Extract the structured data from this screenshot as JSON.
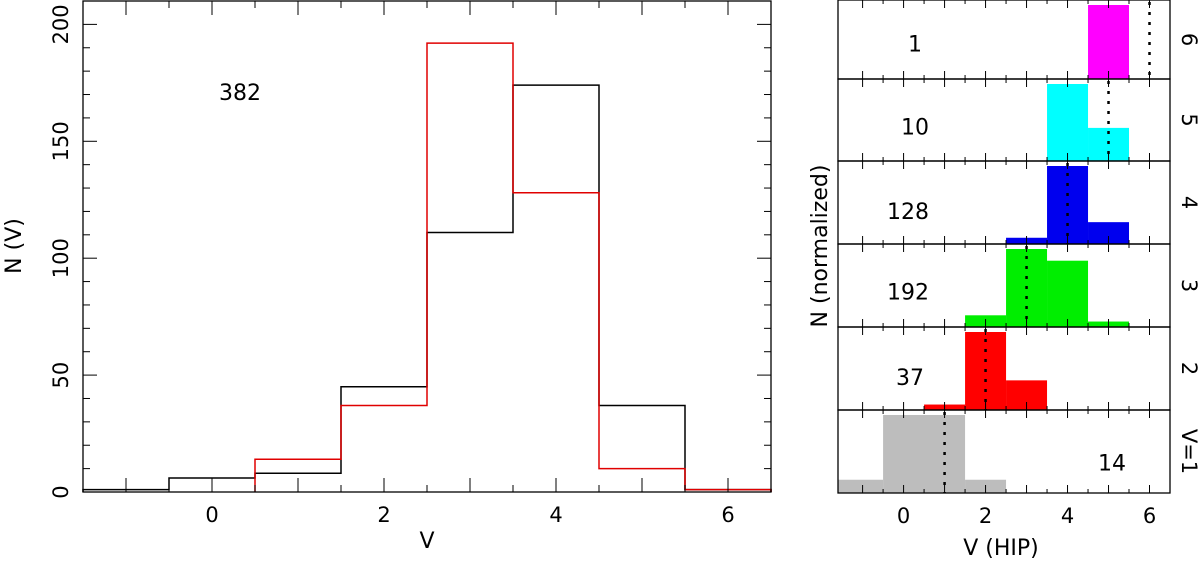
{
  "chart_data": [
    {
      "type": "histogram",
      "xlabel": "V",
      "ylabel": "N (V)",
      "xlim": [
        -1.5,
        6.5
      ],
      "ylim": [
        0,
        210
      ],
      "xticks": [
        0,
        2,
        4,
        6
      ],
      "yticks": [
        0,
        50,
        100,
        150,
        200
      ],
      "annotation": "382",
      "series": [
        {
          "color": "#000000",
          "bins": [
            [
              -1.5,
              -0.5,
              1
            ],
            [
              -0.5,
              0.5,
              6
            ],
            [
              0.5,
              1.5,
              8
            ],
            [
              1.5,
              2.5,
              45
            ],
            [
              2.5,
              3.5,
              111
            ],
            [
              3.5,
              4.5,
              174
            ],
            [
              4.5,
              5.5,
              37
            ],
            [
              5.5,
              6.5,
              1
            ]
          ]
        },
        {
          "color": "#e00000",
          "bins": [
            [
              0.5,
              1.5,
              14
            ],
            [
              1.5,
              2.5,
              37
            ],
            [
              2.5,
              3.5,
              192
            ],
            [
              3.5,
              4.5,
              128
            ],
            [
              4.5,
              5.5,
              10
            ],
            [
              5.5,
              6.5,
              1
            ]
          ]
        }
      ]
    },
    {
      "type": "stacked-histograms",
      "xlabel": "V (HIP)",
      "ylabel": "N (normalized)",
      "xlim": [
        -1.6,
        6.5
      ],
      "xticks": [
        0,
        2,
        4,
        6
      ],
      "panels": [
        {
          "label": "6",
          "count": "1",
          "color": "#ff00ff",
          "marker_v": 6,
          "bins": [
            [
              4.5,
              5.5,
              1.0
            ]
          ]
        },
        {
          "label": "5",
          "count": "10",
          "color": "#00ffff",
          "marker_v": 5,
          "bins": [
            [
              3.5,
              4.5,
              1.0
            ],
            [
              4.5,
              5.5,
              0.43
            ]
          ]
        },
        {
          "label": "4",
          "count": "128",
          "color": "#0000ee",
          "marker_v": 4,
          "bins": [
            [
              2.5,
              3.5,
              0.08
            ],
            [
              3.5,
              4.5,
              1.0
            ],
            [
              4.5,
              5.5,
              0.28
            ]
          ]
        },
        {
          "label": "3",
          "count": "192",
          "color": "#00ee00",
          "marker_v": 3,
          "bins": [
            [
              1.5,
              2.5,
              0.15
            ],
            [
              2.5,
              3.5,
              1.0
            ],
            [
              3.5,
              4.5,
              0.85
            ],
            [
              4.5,
              5.5,
              0.07
            ]
          ]
        },
        {
          "label": "2",
          "count": "37",
          "color": "#ff0000",
          "marker_v": 2,
          "bins": [
            [
              0.5,
              1.5,
              0.07
            ],
            [
              1.5,
              2.5,
              1.0
            ],
            [
              2.5,
              3.5,
              0.38
            ]
          ]
        },
        {
          "label": "V=1",
          "count": "14",
          "color": "#bdbdbd",
          "marker_v": 1,
          "bins": [
            [
              -1.6,
              -0.5,
              0.17
            ],
            [
              -0.5,
              1.5,
              1.0
            ],
            [
              1.5,
              2.5,
              0.17
            ]
          ]
        }
      ]
    }
  ]
}
